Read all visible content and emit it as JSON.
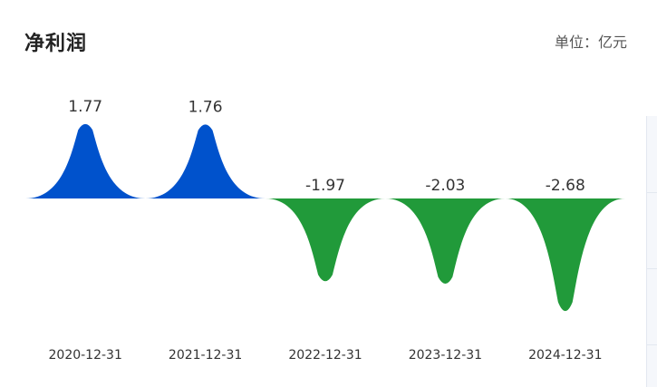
{
  "header": {
    "title": "净利润",
    "unit": "单位：亿元"
  },
  "colors": {
    "positive": "#0052cc",
    "negative": "#219a3a"
  },
  "chart_data": {
    "type": "area",
    "categories": [
      "2020-12-31",
      "2021-12-31",
      "2022-12-31",
      "2023-12-31",
      "2024-12-31"
    ],
    "values": [
      1.77,
      1.76,
      -1.97,
      -2.03,
      -2.68
    ],
    "labels": [
      "1.77",
      "1.76",
      "-1.97",
      "-2.03",
      "-2.68"
    ],
    "ylim": [
      -2.68,
      1.77
    ],
    "grid": false,
    "legend": "none"
  }
}
